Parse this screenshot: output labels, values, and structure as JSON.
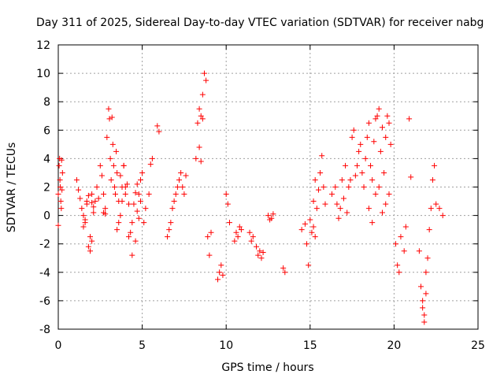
{
  "chart_data": {
    "type": "scatter",
    "title": "Day 311 of 2025, Sidereal Day-to-day VTEC variation (SDTVAR) for receiver nabg",
    "xlabel": "GPS time / hours",
    "ylabel": "SDTVAR / TECUs",
    "xlim": [
      0,
      25
    ],
    "ylim": [
      -8,
      12
    ],
    "xticks": [
      "0",
      "5",
      "10",
      "15",
      "20",
      "25"
    ],
    "yticks": [
      "-8",
      "-6",
      "-4",
      "-2",
      "0",
      "2",
      "4",
      "6",
      "8",
      "10",
      "12"
    ],
    "grid": true,
    "marker": "+",
    "marker_color": "#ff0000",
    "series": [
      {
        "name": "SDTVAR",
        "x": [
          0.0,
          0.05,
          0.08,
          0.12,
          0.15,
          0.18,
          0.22,
          0.25,
          0.0,
          0.1,
          0.2,
          1.1,
          1.2,
          1.3,
          1.4,
          1.5,
          1.6,
          1.7,
          1.8,
          1.9,
          2.0,
          2.1,
          2.2,
          2.3,
          2.4,
          2.5,
          2.6,
          2.7,
          2.8,
          1.5,
          1.7,
          1.9,
          2.0,
          2.1,
          1.8,
          1.6,
          2.0,
          2.7,
          2.8,
          2.9,
          3.0,
          3.05,
          3.1,
          3.15,
          3.2,
          3.25,
          3.3,
          3.35,
          3.4,
          3.45,
          3.5,
          3.6,
          3.7,
          3.8,
          3.9,
          4.0,
          4.1,
          4.2,
          3.5,
          3.6,
          3.7,
          3.8,
          3.9,
          4.0,
          4.2,
          4.4,
          4.6,
          4.7,
          4.8,
          4.9,
          5.0,
          5.1,
          5.2,
          5.4,
          5.5,
          5.6,
          4.3,
          4.4,
          4.5,
          4.6,
          4.7,
          4.8,
          4.9,
          5.9,
          6.0,
          6.5,
          6.6,
          6.7,
          6.8,
          6.9,
          7.0,
          7.1,
          7.2,
          7.3,
          7.4,
          7.5,
          7.6,
          8.2,
          8.3,
          8.4,
          8.5,
          8.6,
          8.7,
          8.8,
          8.4,
          8.5,
          8.6,
          8.9,
          9.0,
          9.1,
          9.5,
          9.6,
          9.7,
          9.8,
          10.0,
          10.1,
          10.2,
          10.5,
          10.6,
          10.7,
          10.8,
          10.9,
          11.4,
          11.5,
          11.6,
          11.8,
          11.9,
          12.0,
          12.1,
          12.2,
          12.5,
          12.6,
          12.7,
          12.8,
          13.4,
          13.5,
          14.5,
          14.7,
          14.8,
          14.9,
          15.0,
          15.1,
          15.2,
          15.3,
          15.2,
          15.3,
          15.4,
          15.5,
          15.6,
          15.7,
          15.8,
          15.9,
          16.3,
          16.5,
          16.6,
          16.7,
          16.8,
          16.9,
          17.0,
          17.1,
          17.2,
          17.3,
          17.4,
          17.5,
          17.6,
          17.7,
          17.8,
          17.9,
          18.0,
          18.1,
          18.2,
          18.3,
          18.4,
          18.5,
          18.6,
          18.7,
          18.8,
          18.9,
          19.0,
          19.1,
          19.2,
          19.3,
          19.4,
          19.5,
          19.6,
          19.7,
          19.8,
          18.5,
          18.7,
          18.9,
          19.1,
          19.3,
          19.5,
          19.7,
          20.1,
          20.2,
          20.3,
          20.4,
          20.6,
          20.7,
          20.9,
          21.0,
          21.5,
          21.6,
          21.7,
          21.8,
          21.9,
          22.0,
          22.1,
          22.2,
          22.3,
          22.4,
          21.7,
          21.8,
          21.9,
          22.5,
          22.7,
          22.9
        ],
        "y": [
          1.5,
          3.5,
          4.0,
          2.0,
          1.0,
          0.5,
          1.8,
          3.0,
          -0.7,
          2.5,
          3.9,
          2.5,
          1.8,
          1.2,
          0.5,
          0.0,
          -0.5,
          0.8,
          -2.2,
          -1.5,
          1.5,
          0.2,
          1.0,
          2.0,
          1.2,
          3.5,
          2.8,
          0.2,
          0.5,
          -0.8,
          1.0,
          -2.5,
          -1.8,
          0.6,
          1.4,
          -0.3,
          0.9,
          1.5,
          0.1,
          5.5,
          7.5,
          6.8,
          4.0,
          2.5,
          6.9,
          5.0,
          3.5,
          2.0,
          1.5,
          4.5,
          3.0,
          1.0,
          0.0,
          2.0,
          3.5,
          1.5,
          2.2,
          0.8,
          -1.0,
          -0.5,
          2.8,
          1.0,
          3.5,
          2.0,
          -1.5,
          -2.8,
          -1.8,
          0.3,
          1.5,
          2.5,
          3.0,
          -0.5,
          0.5,
          1.5,
          3.6,
          4.0,
          -1.2,
          -0.5,
          0.8,
          1.6,
          2.2,
          -0.2,
          1.0,
          6.3,
          5.9,
          -1.5,
          -1.0,
          -0.5,
          0.5,
          1.0,
          1.5,
          2.0,
          2.5,
          3.0,
          2.0,
          1.5,
          2.8,
          4.0,
          6.5,
          7.5,
          7.0,
          8.5,
          10.0,
          9.5,
          4.8,
          3.8,
          6.8,
          -1.5,
          -2.8,
          -1.2,
          -4.5,
          -4.0,
          -3.5,
          -4.2,
          1.5,
          0.8,
          -0.5,
          -1.8,
          -1.2,
          -1.5,
          -0.8,
          -1.0,
          -1.2,
          -1.8,
          -1.5,
          -2.2,
          -2.8,
          -2.5,
          -3.0,
          -2.6,
          0.0,
          -0.3,
          -0.2,
          0.1,
          -3.7,
          -4.0,
          -1.0,
          -0.6,
          -2.0,
          -3.5,
          -0.3,
          -1.2,
          -0.8,
          -1.5,
          1.0,
          2.5,
          0.5,
          1.8,
          3.0,
          4.2,
          2.0,
          0.8,
          1.5,
          2.0,
          0.8,
          -0.2,
          0.5,
          2.5,
          1.2,
          3.5,
          0.2,
          2.0,
          2.5,
          5.5,
          6.0,
          2.8,
          3.5,
          4.5,
          5.0,
          3.0,
          2.0,
          4.0,
          5.5,
          6.5,
          3.5,
          2.5,
          5.2,
          6.8,
          7.0,
          7.5,
          4.5,
          6.2,
          3.0,
          5.5,
          7.0,
          6.5,
          5.0,
          0.5,
          -0.5,
          1.5,
          2.0,
          0.2,
          0.8,
          1.5,
          -2.0,
          -3.5,
          -4.0,
          -1.5,
          -2.5,
          -0.8,
          6.8,
          2.7,
          -2.5,
          -5.0,
          -6.5,
          -7.5,
          -4.0,
          -3.0,
          -1.0,
          0.5,
          2.5,
          3.5,
          -6.0,
          -7.0,
          -5.5,
          0.8,
          0.5,
          0.0
        ]
      }
    ]
  }
}
